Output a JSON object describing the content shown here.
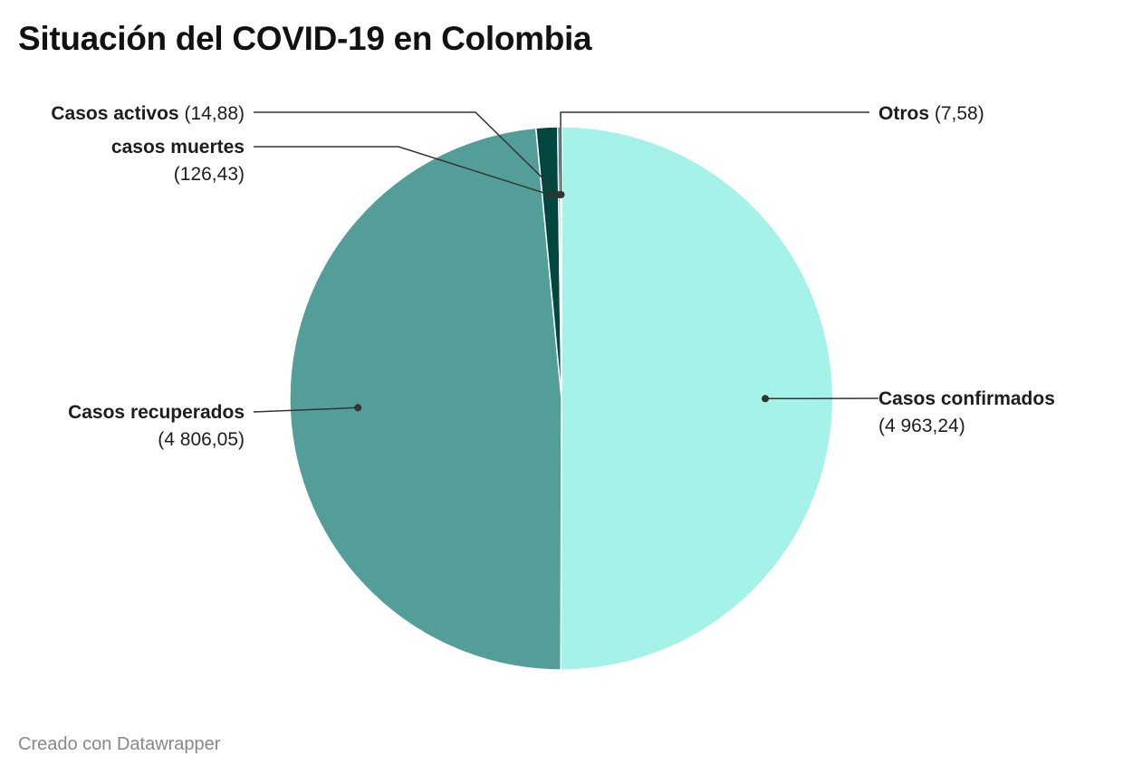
{
  "header": {
    "title": "Situación del COVID-19 en Colombia"
  },
  "footer": {
    "credit": "Creado con Datawrapper"
  },
  "chart_data": {
    "type": "pie",
    "title": "Situación del COVID-19 en Colombia",
    "start": "12 o'clock, clockwise",
    "slices": [
      {
        "label": "Casos confirmados",
        "value": 4963.24,
        "value_text": "(4 963,24)",
        "color": "#a5f2e8"
      },
      {
        "label": "Casos recuperados",
        "value": 4806.05,
        "value_text": "(4 806,05)",
        "color": "#539e98"
      },
      {
        "label": "casos muertes",
        "value": 126.43,
        "value_text": "(126,43)",
        "color": "#02473f"
      },
      {
        "label": "Casos activos",
        "value": 14.88,
        "value_text": "(14,88)",
        "color": "#0a6a5f"
      },
      {
        "label": "Otros",
        "value": 7.58,
        "value_text": "(7,58)",
        "color": "#d5f5f0"
      }
    ]
  }
}
